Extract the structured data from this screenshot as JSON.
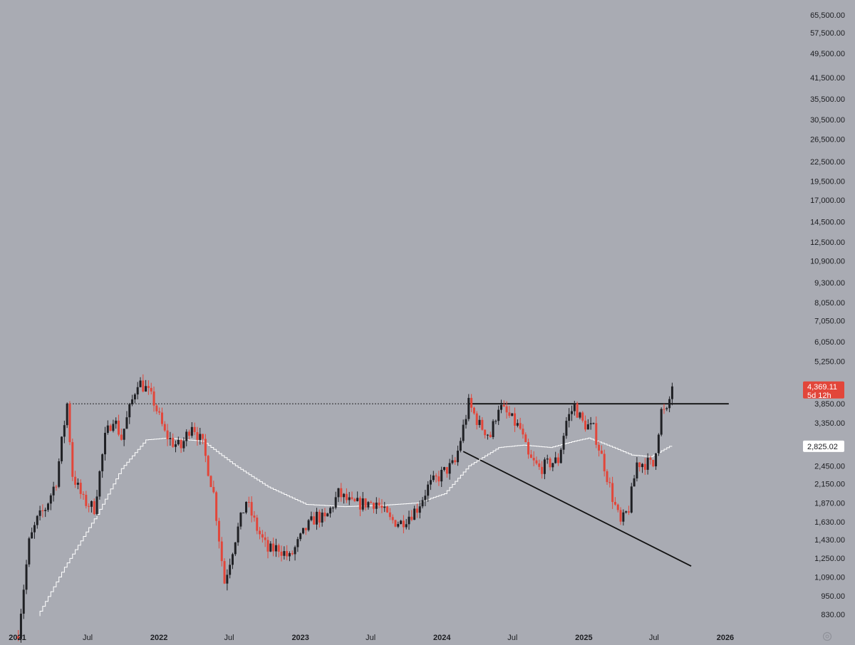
{
  "chart_data": {
    "type": "candlestick",
    "title": "",
    "xlabel": "",
    "ylabel": "",
    "scale": "log",
    "grid": false,
    "colors": {
      "background": "#a9abb3",
      "up": "#1f2024",
      "down": "#e2463a",
      "moving_average": "#ffffff",
      "trendline": "#111111",
      "price_tag": "#e2463a",
      "ma_tag": "#ffffff",
      "text": "#1c1d21"
    },
    "y_ticks": [
      830,
      950,
      1090,
      1250,
      1430,
      1630,
      1870,
      2150,
      2450,
      3350,
      3850,
      5250,
      6050,
      7050,
      8050,
      9300,
      10900,
      12500,
      14500,
      17000,
      19500,
      22500,
      26500,
      30500,
      35500,
      41500,
      49500,
      57500,
      65500
    ],
    "y_tick_labels": [
      "830.00",
      "950.00",
      "1,090.00",
      "1,250.00",
      "1,430.00",
      "1,630.00",
      "1,870.00",
      "2,150.00",
      "2,450.00",
      "3,350.00",
      "3,850.00",
      "5,250.00",
      "6,050.00",
      "7,050.00",
      "8,050.00",
      "9,300.00",
      "10,900.00",
      "12,500.00",
      "14,500.00",
      "17,000.00",
      "19,500.00",
      "22,500.00",
      "26,500.00",
      "30,500.00",
      "35,500.00",
      "41,500.00",
      "49,500.00",
      "57,500.00",
      "65,500.00"
    ],
    "x_ticks": [
      {
        "label": "2021",
        "date": "2021-01-01",
        "year": true
      },
      {
        "label": "Jul",
        "date": "2021-07-01",
        "year": false
      },
      {
        "label": "2022",
        "date": "2022-01-01",
        "year": true
      },
      {
        "label": "Jul",
        "date": "2022-07-01",
        "year": false
      },
      {
        "label": "2023",
        "date": "2023-01-01",
        "year": true
      },
      {
        "label": "Jul",
        "date": "2023-07-01",
        "year": false
      },
      {
        "label": "2024",
        "date": "2024-01-01",
        "year": true
      },
      {
        "label": "Jul",
        "date": "2024-07-01",
        "year": false
      },
      {
        "label": "2025",
        "date": "2025-01-01",
        "year": true
      },
      {
        "label": "Jul",
        "date": "2025-07-01",
        "year": false
      },
      {
        "label": "2026",
        "date": "2026-01-01",
        "year": true
      }
    ],
    "x_range": [
      "2020-12-20",
      "2026-06-10"
    ],
    "y_range": [
      760,
      70000
    ],
    "price_anchors": [
      [
        "2021-01-03",
        730
      ],
      [
        "2021-01-31",
        1400
      ],
      [
        "2021-02-21",
        1650
      ],
      [
        "2021-03-14",
        1800
      ],
      [
        "2021-04-11",
        2200
      ],
      [
        "2021-05-09",
        3850
      ],
      [
        "2021-05-23",
        2300
      ],
      [
        "2021-06-20",
        1900
      ],
      [
        "2021-07-18",
        1800
      ],
      [
        "2021-08-15",
        3000
      ],
      [
        "2021-09-05",
        3500
      ],
      [
        "2021-09-26",
        3000
      ],
      [
        "2021-10-24",
        3950
      ],
      [
        "2021-11-07",
        4550
      ],
      [
        "2021-11-28",
        4300
      ],
      [
        "2021-12-19",
        3900
      ],
      [
        "2022-01-16",
        3100
      ],
      [
        "2022-02-06",
        2900
      ],
      [
        "2022-02-27",
        2800
      ],
      [
        "2022-03-27",
        3350
      ],
      [
        "2022-04-24",
        2850
      ],
      [
        "2022-05-22",
        2000
      ],
      [
        "2022-06-19",
        1050
      ],
      [
        "2022-07-17",
        1450
      ],
      [
        "2022-08-14",
        1900
      ],
      [
        "2022-09-11",
        1550
      ],
      [
        "2022-10-09",
        1320
      ],
      [
        "2022-11-06",
        1350
      ],
      [
        "2022-12-04",
        1250
      ],
      [
        "2023-01-15",
        1550
      ],
      [
        "2023-02-12",
        1700
      ],
      [
        "2023-03-05",
        1650
      ],
      [
        "2023-04-09",
        2000
      ],
      [
        "2023-05-14",
        1850
      ],
      [
        "2023-06-25",
        1870
      ],
      [
        "2023-07-16",
        1880
      ],
      [
        "2023-08-20",
        1650
      ],
      [
        "2023-09-17",
        1620
      ],
      [
        "2023-10-29",
        1800
      ],
      [
        "2023-11-26",
        2100
      ],
      [
        "2024-01-07",
        2350
      ],
      [
        "2024-02-04",
        2500
      ],
      [
        "2024-03-10",
        3850
      ],
      [
        "2024-04-07",
        3300
      ],
      [
        "2024-05-05",
        3050
      ],
      [
        "2024-05-26",
        3800
      ],
      [
        "2024-06-23",
        3500
      ],
      [
        "2024-07-21",
        3200
      ],
      [
        "2024-08-11",
        2600
      ],
      [
        "2024-09-08",
        2400
      ],
      [
        "2024-10-06",
        2500
      ],
      [
        "2024-10-27",
        2550
      ],
      [
        "2024-11-17",
        3400
      ],
      [
        "2024-12-08",
        3800
      ],
      [
        "2024-12-29",
        3350
      ],
      [
        "2025-01-26",
        3200
      ],
      [
        "2025-02-23",
        2450
      ],
      [
        "2025-03-16",
        1950
      ],
      [
        "2025-04-06",
        1600
      ],
      [
        "2025-04-27",
        1800
      ],
      [
        "2025-05-18",
        2500
      ],
      [
        "2025-06-15",
        2500
      ],
      [
        "2025-06-29",
        2450
      ],
      [
        "2025-07-20",
        3650
      ],
      [
        "2025-08-03",
        3600
      ],
      [
        "2025-08-17",
        4369
      ]
    ],
    "ma_anchors": [
      [
        "2021-02-28",
        820
      ],
      [
        "2021-05-09",
        1170
      ],
      [
        "2021-08-01",
        1720
      ],
      [
        "2021-10-03",
        2400
      ],
      [
        "2021-12-05",
        2960
      ],
      [
        "2022-01-30",
        3000
      ],
      [
        "2022-05-01",
        2930
      ],
      [
        "2022-07-24",
        2450
      ],
      [
        "2022-10-16",
        2100
      ],
      [
        "2023-01-22",
        1850
      ],
      [
        "2023-04-30",
        1820
      ],
      [
        "2023-08-13",
        1840
      ],
      [
        "2023-11-05",
        1870
      ],
      [
        "2024-01-14",
        2000
      ],
      [
        "2024-03-17",
        2450
      ],
      [
        "2024-06-02",
        2800
      ],
      [
        "2024-08-04",
        2850
      ],
      [
        "2024-10-13",
        2800
      ],
      [
        "2024-12-08",
        2920
      ],
      [
        "2025-01-19",
        3000
      ],
      [
        "2025-03-09",
        2850
      ],
      [
        "2025-05-11",
        2650
      ],
      [
        "2025-06-29",
        2620
      ],
      [
        "2025-08-17",
        2825
      ]
    ],
    "lines": [
      {
        "name": "resistance-dotted",
        "style": "dotted",
        "points": [
          [
            "2021-05-09",
            3850
          ],
          [
            "2024-03-10",
            3850
          ]
        ]
      },
      {
        "name": "resistance-solid",
        "style": "solid",
        "points": [
          [
            "2024-03-10",
            3850
          ],
          [
            "2026-01-10",
            3850
          ]
        ]
      },
      {
        "name": "descending-trendline",
        "style": "solid",
        "points": [
          [
            "2024-02-25",
            2720
          ],
          [
            "2025-10-05",
            1180
          ]
        ]
      }
    ],
    "price_tag": {
      "value": 4369.11,
      "label": "4,369.11",
      "countdown": "5d 12h"
    },
    "ma_tag": {
      "value": 2825.02,
      "label": "2,825.02"
    }
  }
}
